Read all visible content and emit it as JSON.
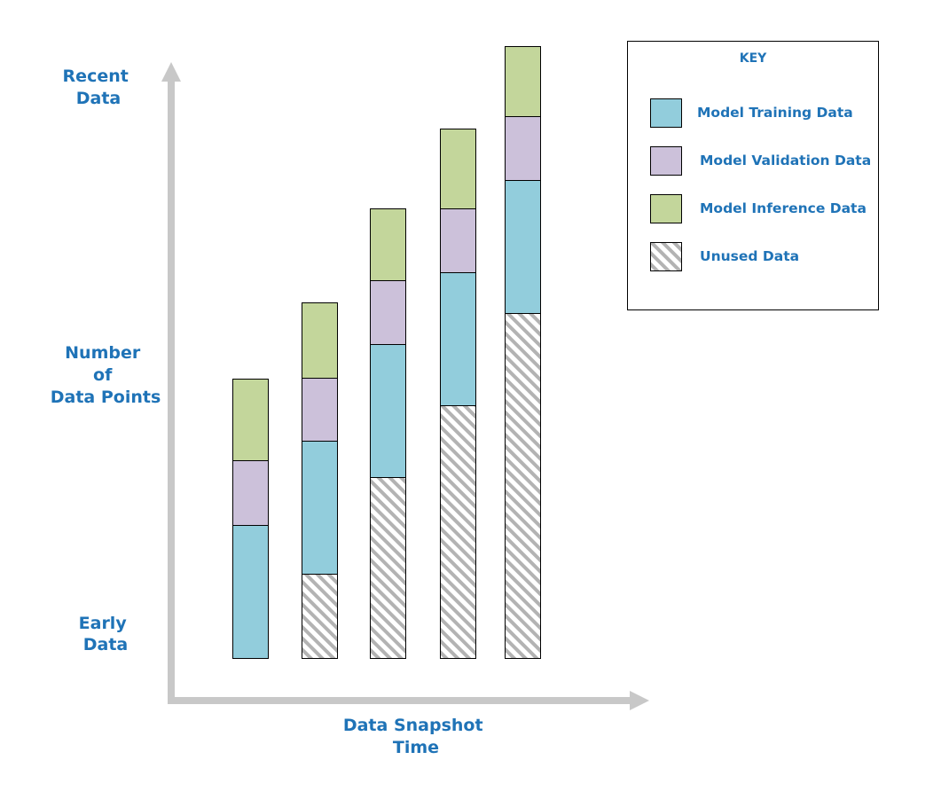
{
  "colors": {
    "training": "#92cddc",
    "validation": "#ccc1da",
    "inference": "#c3d69b",
    "unused_stripe": "#b3b3b3",
    "axis": "#c8c8c8",
    "text": "#1f73b7"
  },
  "axes": {
    "y_top_label": [
      "Recent",
      "Data"
    ],
    "y_mid_label": [
      "Number",
      "of",
      "Data Points"
    ],
    "y_bottom_label": [
      "Early",
      "Data"
    ],
    "x_label": [
      "Data Snapshot",
      "Time"
    ]
  },
  "key": {
    "title": "KEY",
    "items": [
      {
        "label": "Model Training Data",
        "kind": "training"
      },
      {
        "label": "Model Validation Data",
        "kind": "validation"
      },
      {
        "label": "Model Inference Data",
        "kind": "inference"
      },
      {
        "label": "Unused Data",
        "kind": "unused"
      }
    ]
  },
  "snapshots": [
    {
      "unused": 0,
      "training": 150,
      "validation": 73,
      "inference": 92
    },
    {
      "unused": 95,
      "training": 150,
      "validation": 71,
      "inference": 85
    },
    {
      "unused": 204,
      "training": 150,
      "validation": 72,
      "inference": 81
    },
    {
      "unused": 285,
      "training": 150,
      "validation": 72,
      "inference": 90
    },
    {
      "unused": 389,
      "training": 150,
      "validation": 72,
      "inference": 79
    }
  ]
}
